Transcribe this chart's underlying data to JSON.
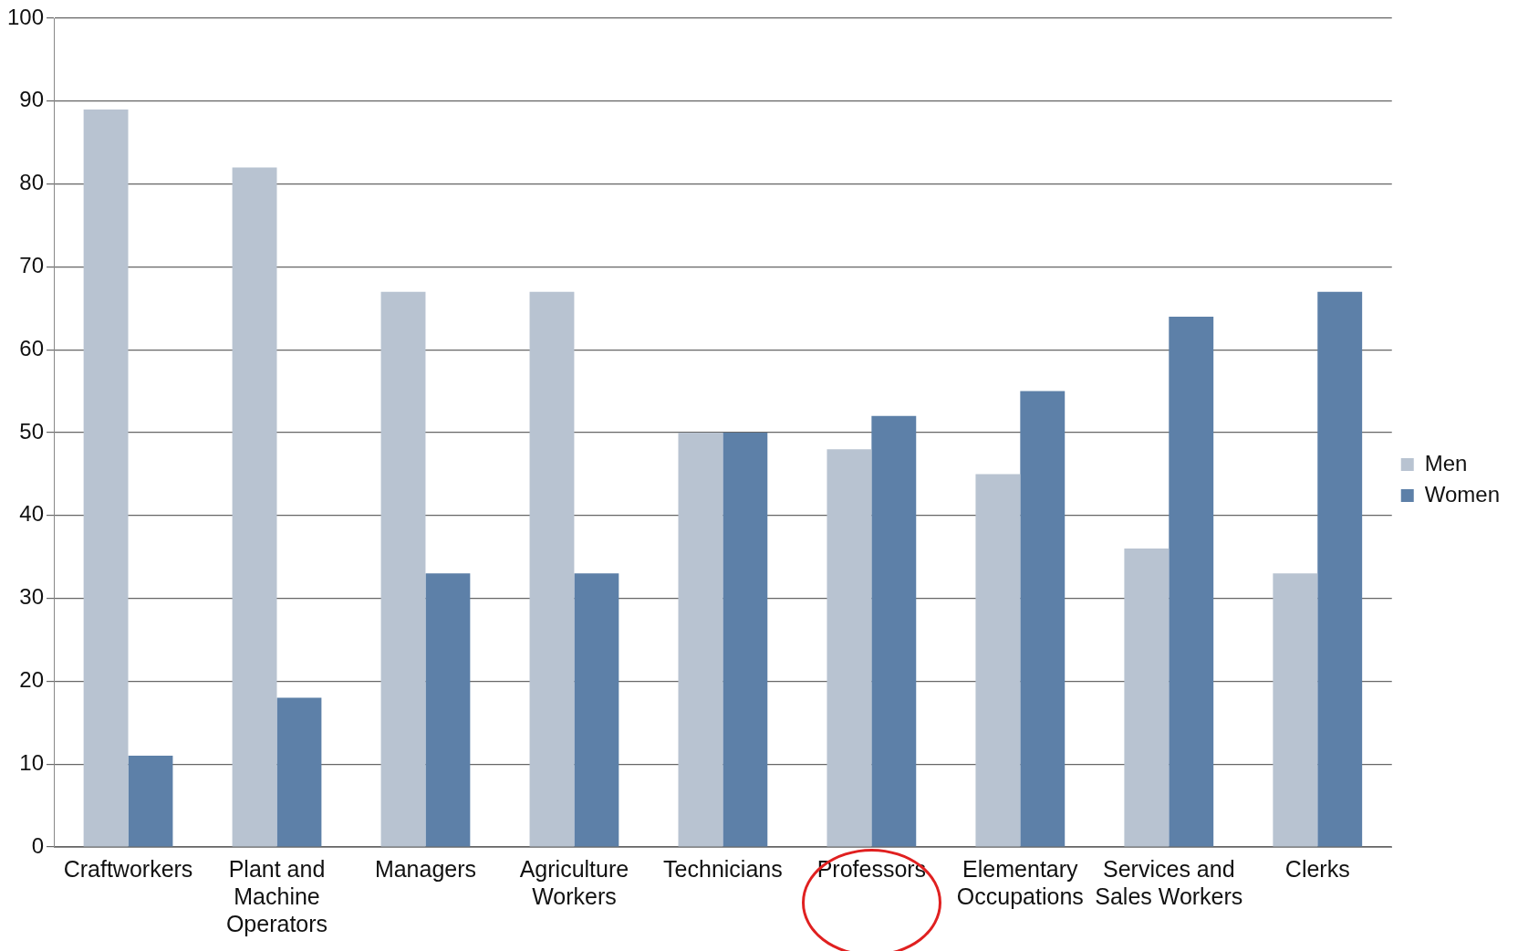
{
  "chart_data": {
    "type": "bar",
    "categories": [
      "Craftworkers",
      "Plant and Machine Operators",
      "Managers",
      "Agriculture Workers",
      "Technicians",
      "Professors",
      "Elementary Occupations",
      "Services and Sales Workers",
      "Clerks"
    ],
    "series": [
      {
        "name": "Men",
        "color": "#b8c3d1",
        "values": [
          89,
          82,
          67,
          67,
          50,
          48,
          45,
          36,
          33
        ]
      },
      {
        "name": "Women",
        "color": "#5d80a8",
        "values": [
          11,
          18,
          33,
          33,
          50,
          52,
          55,
          64,
          67
        ]
      }
    ],
    "ylim": [
      0,
      100
    ],
    "yticks": [
      0,
      10,
      20,
      30,
      40,
      50,
      60,
      70,
      80,
      90,
      100
    ],
    "grid": "y",
    "legend": "right"
  }
}
